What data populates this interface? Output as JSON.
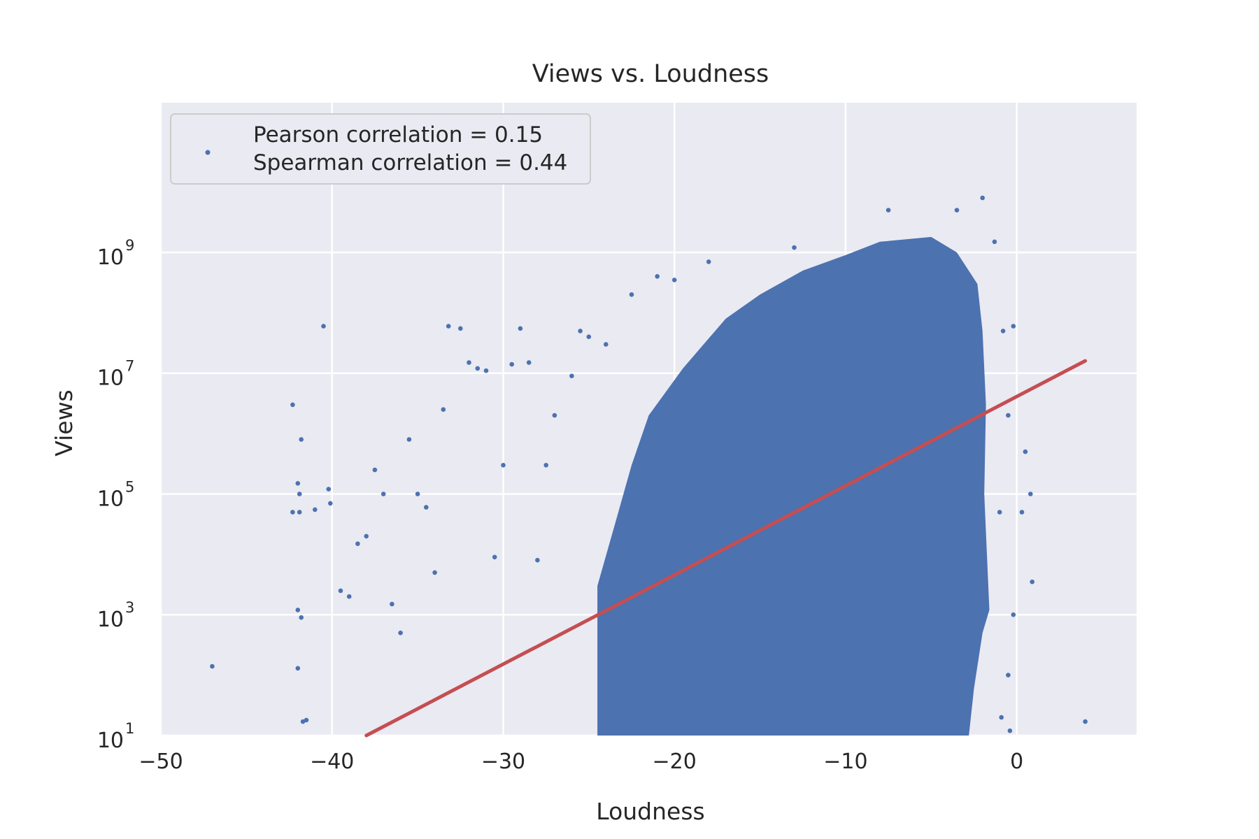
{
  "chart_data": {
    "type": "scatter",
    "title": "Views vs. Loudness",
    "xlabel": "Loudness",
    "ylabel": "Views",
    "xlim": [
      -50,
      7
    ],
    "ylim": [
      10,
      300000000000
    ],
    "yscale": "log",
    "grid": true,
    "legend_placement": "top-left",
    "xticks": [
      {
        "value": -50,
        "label": "−50"
      },
      {
        "value": -40,
        "label": "−40"
      },
      {
        "value": -30,
        "label": "−30"
      },
      {
        "value": -20,
        "label": "−20"
      },
      {
        "value": -10,
        "label": "−10"
      },
      {
        "value": 0,
        "label": "0"
      }
    ],
    "yticks": [
      {
        "value": 10,
        "base": "10",
        "exp": "1"
      },
      {
        "value": 1000,
        "base": "10",
        "exp": "3"
      },
      {
        "value": 100000,
        "base": "10",
        "exp": "5"
      },
      {
        "value": 10000000,
        "base": "10",
        "exp": "7"
      },
      {
        "value": 1000000000,
        "base": "10",
        "exp": "9"
      }
    ],
    "legend": {
      "lines": [
        "Pearson correlation = 0.15",
        "Spearman correlation = 0.44"
      ]
    },
    "colors": {
      "points": "#4c72b0",
      "fit_line": "#c44e52",
      "plot_background": "#eaeaf2",
      "grid": "#ffffff"
    },
    "series": [
      {
        "type": "scatter",
        "points": [
          [
            -47.0,
            140
          ],
          [
            -42.3,
            3000000
          ],
          [
            -42.3,
            50000
          ],
          [
            -42.0,
            150000
          ],
          [
            -41.9,
            100000
          ],
          [
            -41.8,
            800000
          ],
          [
            -41.9,
            50000
          ],
          [
            -42.0,
            1200
          ],
          [
            -41.8,
            900
          ],
          [
            -42.0,
            130
          ],
          [
            -41.7,
            17
          ],
          [
            -41.5,
            18
          ],
          [
            -41.0,
            55000
          ],
          [
            -40.5,
            60000000
          ],
          [
            -40.2,
            120000
          ],
          [
            -40.1,
            70000
          ],
          [
            -39.5,
            2500
          ],
          [
            -39.0,
            2000
          ],
          [
            -38.5,
            15000
          ],
          [
            -38.0,
            20000
          ],
          [
            -37.5,
            250000
          ],
          [
            -37.0,
            100000
          ],
          [
            -36.5,
            1500
          ],
          [
            -36.0,
            500
          ],
          [
            -35.5,
            800000
          ],
          [
            -35.0,
            100000
          ],
          [
            -34.5,
            60000
          ],
          [
            -34.0,
            5000
          ],
          [
            -33.5,
            2500000
          ],
          [
            -33.2,
            60000000
          ],
          [
            -32.5,
            55000000
          ],
          [
            -32.0,
            15000000
          ],
          [
            -31.5,
            12000000
          ],
          [
            -31.0,
            11000000
          ],
          [
            -30.5,
            9000
          ],
          [
            -30.0,
            300000
          ],
          [
            -29.5,
            14000000
          ],
          [
            -29.0,
            55000000
          ],
          [
            -28.5,
            15000000
          ],
          [
            -28.0,
            8000
          ],
          [
            -27.5,
            300000
          ],
          [
            -27.0,
            2000000
          ],
          [
            -26.0,
            9000000
          ],
          [
            -25.5,
            50000000
          ],
          [
            -25.0,
            40000000
          ],
          [
            -24.0,
            30000000
          ],
          [
            -22.5,
            200000000
          ],
          [
            -21.0,
            400000000
          ],
          [
            -20.0,
            350000000
          ],
          [
            -18.0,
            700000000
          ],
          [
            -13.0,
            1200000000
          ],
          [
            -7.5,
            5000000000
          ],
          [
            -3.5,
            5000000000
          ],
          [
            -2.0,
            8000000000
          ],
          [
            -1.3,
            1500000000
          ],
          [
            -0.2,
            60000000
          ],
          [
            -0.8,
            50000000
          ],
          [
            0.5,
            500000
          ],
          [
            0.8,
            100000
          ],
          [
            0.3,
            50000
          ],
          [
            0.9,
            3500
          ],
          [
            -0.2,
            1000
          ],
          [
            -0.5,
            100
          ],
          [
            -0.9,
            20
          ],
          [
            -0.4,
            12
          ],
          [
            4.0,
            17
          ],
          [
            -1.0,
            50000
          ],
          [
            -0.5,
            2000000
          ]
        ]
      },
      {
        "type": "line",
        "name": "",
        "points": [
          [
            -38,
            10
          ],
          [
            4,
            16000000
          ]
        ]
      }
    ]
  }
}
